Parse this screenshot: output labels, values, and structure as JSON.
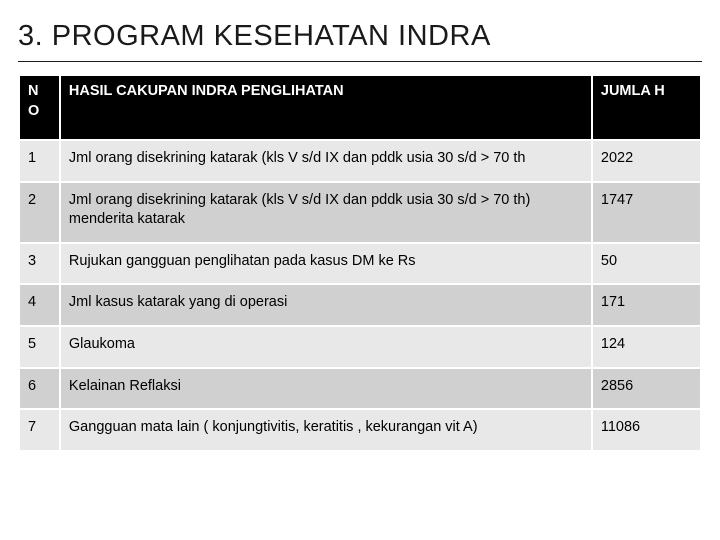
{
  "title": "3. PROGRAM KESEHATAN INDRA",
  "table": {
    "colors": {
      "header_bg": "#000000",
      "header_fg": "#ffffff",
      "band_a": "#e8e8e8",
      "band_b": "#d0d0d0",
      "border": "#ffffff",
      "text": "#000000"
    },
    "columns": {
      "no": "N O",
      "desc": "HASIL CAKUPAN INDRA PENGLIHATAN",
      "jml": "JUMLA H"
    },
    "column_widths_pct": [
      6,
      78,
      16
    ],
    "font_size_pt": 14.5,
    "rows": [
      {
        "no": "1",
        "desc": "Jml orang disekrining katarak (kls V s/d IX dan pddk usia 30 s/d > 70 th",
        "jml": "2022"
      },
      {
        "no": "2",
        "desc": "Jml orang disekrining katarak (kls V s/d IX dan pddk usia 30 s/d > 70 th) menderita katarak",
        "jml": "1747"
      },
      {
        "no": "3",
        "desc": "Rujukan gangguan penglihatan pada kasus DM ke Rs",
        "jml": "50"
      },
      {
        "no": "4",
        "desc": "Jml kasus katarak yang di operasi",
        "jml": "171"
      },
      {
        "no": "5",
        "desc": "Glaukoma",
        "jml": "124"
      },
      {
        "no": "6",
        "desc": "Kelainan Reflaksi",
        "jml": "2856"
      },
      {
        "no": "7",
        "desc": "Gangguan mata lain ( konjungtivitis, keratitis , kekurangan vit A)",
        "jml": "11086"
      }
    ]
  }
}
